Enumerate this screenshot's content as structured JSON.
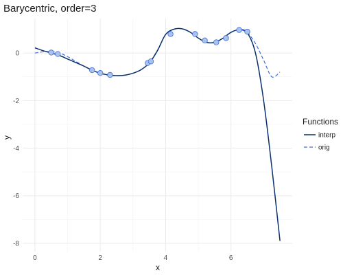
{
  "chart_data": {
    "type": "line",
    "title": "Barycentric, order=3",
    "xlabel": "x",
    "ylabel": "y",
    "xlim": [
      -0.375,
      7.875
    ],
    "ylim": [
      -8.35,
      1.45
    ],
    "x_ticks": [
      0,
      2,
      4,
      6
    ],
    "y_ticks": [
      0,
      -2,
      -4,
      -6,
      -8
    ],
    "grid": true,
    "legend": {
      "title": "Functions",
      "placement": "right"
    },
    "series": [
      {
        "name": "interp",
        "color": "#08306b",
        "style": "solid",
        "x": [
          0,
          0.25,
          0.5,
          0.75,
          1.0,
          1.25,
          1.5,
          1.75,
          2.0,
          2.25,
          2.5,
          2.75,
          3.0,
          3.25,
          3.5,
          3.75,
          4.0,
          4.25,
          4.5,
          4.75,
          5.0,
          5.25,
          5.5,
          5.75,
          6.0,
          6.25,
          6.5,
          6.75,
          7.0,
          7.25,
          7.5
        ],
        "y": [
          0.22,
          0.1,
          0.0,
          -0.1,
          -0.25,
          -0.4,
          -0.55,
          -0.72,
          -0.85,
          -0.92,
          -0.95,
          -0.93,
          -0.85,
          -0.7,
          -0.42,
          0.1,
          0.78,
          1.0,
          1.02,
          0.88,
          0.63,
          0.45,
          0.45,
          0.62,
          0.87,
          0.98,
          0.85,
          0.0,
          -2.0,
          -4.8,
          -7.9
        ]
      },
      {
        "name": "orig",
        "color": "#4169e1",
        "style": "dashed",
        "x": [
          0,
          0.25,
          0.5,
          0.75,
          1.0,
          1.25,
          1.5,
          1.75,
          2.0,
          2.25,
          2.5,
          2.75,
          3.0,
          3.25,
          3.5,
          3.75,
          4.0,
          4.25,
          4.5,
          4.75,
          5.0,
          5.25,
          5.5,
          5.75,
          6.0,
          6.25,
          6.5,
          6.75,
          7.0,
          7.25,
          7.5
        ],
        "y": [
          0.0,
          0.05,
          0.06,
          0.0,
          -0.15,
          -0.35,
          -0.55,
          -0.72,
          -0.85,
          -0.93,
          -0.95,
          -0.93,
          -0.85,
          -0.7,
          -0.4,
          0.12,
          0.78,
          1.0,
          1.02,
          0.88,
          0.63,
          0.45,
          0.45,
          0.62,
          0.87,
          0.98,
          0.85,
          0.4,
          -0.3,
          -1.0,
          -0.8
        ]
      }
    ],
    "points": {
      "color": "#a9c4eb",
      "stroke": "#4169e1",
      "x": [
        0.5,
        0.7,
        1.75,
        2.0,
        2.3,
        3.45,
        3.55,
        4.15,
        4.9,
        5.2,
        5.55,
        5.85,
        6.25,
        6.5
      ],
      "y": [
        0.02,
        -0.04,
        -0.72,
        -0.84,
        -0.92,
        -0.42,
        -0.35,
        0.8,
        0.8,
        0.53,
        0.45,
        0.63,
        0.97,
        0.9
      ]
    }
  }
}
